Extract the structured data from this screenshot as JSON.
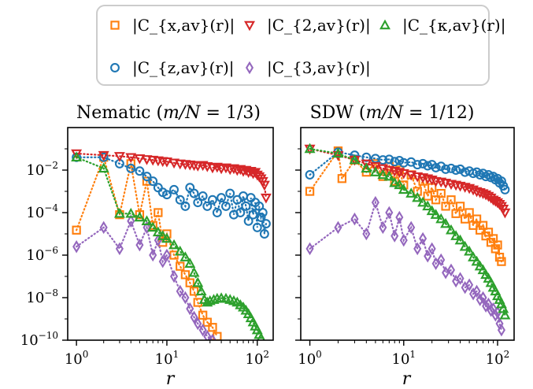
{
  "colors": {
    "C_x": "#ff7f0e",
    "C_z": "#1f77b4",
    "C_2": "#d62728",
    "C_3": "#9467bd",
    "C_kappa": "#2ca02c"
  },
  "legend": {
    "position": "top-center",
    "entries": [
      {
        "key": "C_x",
        "label": "|C_{x,av}(r)|",
        "marker": "square"
      },
      {
        "key": "C_2",
        "label": "|C_{2,av}(r)|",
        "marker": "triangle-down"
      },
      {
        "key": "C_kappa",
        "label": "|C_{κ,av}(r)|",
        "marker": "triangle-up"
      },
      {
        "key": "C_z",
        "label": "|C_{z,av}(r)|",
        "marker": "circle"
      },
      {
        "key": "C_3",
        "label": "|C_{3,av}(r)|",
        "marker": "diamond"
      }
    ]
  },
  "chart_data": [
    {
      "type": "scatter",
      "title": "Nematic (m/N = 1/3)",
      "title_plain": "Nematic (",
      "title_math": "m/N",
      "title_tail": " = 1/3)",
      "xlabel": "r",
      "ylabel": "",
      "xscale": "log",
      "yscale": "log",
      "xlim": [
        0.8,
        150
      ],
      "ylim": [
        1e-10,
        1
      ],
      "grid": false,
      "series": [
        {
          "key": "C_x",
          "name": "|C_{x,av}(r)|",
          "x": [
            1,
            2,
            3,
            4,
            5,
            6,
            7,
            8,
            9,
            10,
            12,
            14,
            16,
            18,
            20,
            22,
            25,
            28,
            32,
            36
          ],
          "y": [
            1.5e-05,
            0.04,
            8e-05,
            0.02,
            8e-05,
            0.003,
            2.5e-05,
            0.0001,
            4e-06,
            1e-05,
            1e-06,
            3e-07,
            1.2e-07,
            5e-08,
            2e-08,
            6e-09,
            1.5e-09,
            7e-10,
            4e-10,
            1.5e-10
          ]
        },
        {
          "key": "C_z",
          "name": "|C_{z,av}(r)|",
          "x": [
            1,
            2,
            3,
            4,
            5,
            6,
            7,
            8,
            9,
            10,
            12,
            14,
            16,
            18,
            20,
            22,
            25,
            28,
            32,
            36,
            40,
            45,
            50,
            55,
            60,
            65,
            70,
            75,
            80,
            85,
            90,
            95,
            100,
            105,
            110,
            115,
            120,
            125
          ],
          "y": [
            0.04,
            0.04,
            0.02,
            0.012,
            0.009,
            0.005,
            0.003,
            0.0015,
            0.0009,
            0.0007,
            0.0012,
            0.0004,
            0.0002,
            0.0015,
            0.0008,
            0.0003,
            0.0006,
            0.0002,
            0.0004,
            0.0001,
            0.0005,
            0.0002,
            0.0008,
            8e-05,
            0.0004,
            0.0001,
            0.0006,
            0.0002,
            4e-05,
            0.0005,
            8e-05,
            0.0003,
            2e-05,
            0.0002,
            6e-05,
            0.0001,
            1e-05,
            3e-05
          ]
        },
        {
          "key": "C_2",
          "name": "|C_{2,av}(r)|",
          "x": [
            1,
            2,
            3,
            4,
            5,
            6,
            7,
            8,
            9,
            10,
            12,
            14,
            16,
            18,
            20,
            22,
            25,
            28,
            32,
            36,
            40,
            45,
            50,
            55,
            60,
            65,
            70,
            75,
            80,
            85,
            90,
            95,
            100,
            105,
            110,
            115,
            120,
            125
          ],
          "y": [
            0.06,
            0.05,
            0.045,
            0.04,
            0.035,
            0.032,
            0.03,
            0.028,
            0.026,
            0.025,
            0.022,
            0.02,
            0.019,
            0.018,
            0.017,
            0.016,
            0.017,
            0.015,
            0.013,
            0.014,
            0.012,
            0.013,
            0.011,
            0.012,
            0.01,
            0.011,
            0.009,
            0.01,
            0.008,
            0.009,
            0.007,
            0.008,
            0.006,
            0.005,
            0.004,
            0.003,
            0.002,
            0.0005
          ]
        },
        {
          "key": "C_3",
          "name": "|C_{3,av}(r)|",
          "x": [
            1,
            2,
            3,
            4,
            5,
            6,
            7,
            8,
            9,
            10,
            12,
            14,
            16,
            18,
            20,
            22,
            25,
            28,
            32
          ],
          "y": [
            2.5e-06,
            2e-05,
            2e-06,
            4e-05,
            3e-06,
            2e-05,
            1e-06,
            5e-06,
            5e-07,
            1e-06,
            1e-07,
            2e-08,
            1e-08,
            3e-09,
            1.2e-09,
            6e-10,
            3e-10,
            1.5e-10,
            1e-10
          ]
        },
        {
          "key": "C_kappa",
          "name": "|C_{κ,av}(r)|",
          "x": [
            1,
            2,
            3,
            4,
            5,
            6,
            7,
            8,
            9,
            10,
            12,
            14,
            16,
            18,
            20,
            22,
            24,
            26,
            28,
            30,
            33,
            36,
            40,
            45,
            50,
            55,
            60,
            65,
            70,
            75,
            80,
            85,
            90,
            95,
            100,
            105,
            110
          ],
          "y": [
            0.04,
            0.012,
            9e-05,
            9e-05,
            6e-05,
            4e-05,
            2e-05,
            1.2e-05,
            8e-06,
            6e-06,
            3e-06,
            1.5e-06,
            8e-07,
            4e-07,
            1.5e-07,
            5e-08,
            2e-08,
            8e-09,
            6e-09,
            7e-09,
            8e-09,
            9e-09,
            9.5e-09,
            9e-09,
            8e-09,
            7e-09,
            6e-09,
            4.5e-09,
            3.5e-09,
            2.5e-09,
            1.7e-09,
            1.1e-09,
            7e-10,
            4.5e-10,
            3e-10,
            1.8e-10,
            1.2e-10
          ]
        }
      ]
    },
    {
      "type": "scatter",
      "title": "SDW (m/N = 1/12)",
      "title_plain": "SDW (",
      "title_math": "m/N",
      "title_tail": " = 1/12)",
      "xlabel": "r",
      "ylabel": "",
      "xscale": "log",
      "yscale": "log",
      "xlim": [
        0.8,
        150
      ],
      "ylim": [
        1e-10,
        1
      ],
      "grid": false,
      "series": [
        {
          "key": "C_x",
          "name": "|C_{x,av}(r)|",
          "x": [
            1,
            2,
            2.2,
            3,
            4,
            5,
            6,
            7,
            8,
            9,
            10,
            12,
            14,
            16,
            18,
            20,
            22,
            25,
            28,
            32,
            36,
            40,
            45,
            50,
            55,
            60,
            65,
            70,
            75,
            80,
            85,
            90,
            95,
            100,
            105,
            110
          ],
          "y": [
            0.001,
            0.08,
            0.004,
            0.03,
            0.008,
            0.02,
            0.005,
            0.015,
            0.003,
            0.01,
            0.002,
            0.006,
            0.001,
            0.003,
            0.0006,
            0.0015,
            0.0004,
            0.0008,
            0.0002,
            0.0004,
            9e-05,
            0.0002,
            5e-05,
            0.0001,
            2.5e-05,
            5e-05,
            1.5e-05,
            2.5e-05,
            8e-06,
            1.2e-05,
            4e-06,
            6e-06,
            2e-06,
            3e-06,
            8e-07,
            5e-07
          ]
        },
        {
          "key": "C_z",
          "name": "|C_{z,av}(r)|",
          "x": [
            1,
            2,
            3,
            4,
            5,
            6,
            7,
            8,
            9,
            10,
            12,
            14,
            16,
            18,
            20,
            22,
            25,
            28,
            32,
            36,
            40,
            45,
            50,
            55,
            60,
            65,
            70,
            75,
            80,
            85,
            90,
            95,
            100,
            105,
            110,
            115,
            120
          ],
          "y": [
            0.006,
            0.07,
            0.05,
            0.04,
            0.035,
            0.03,
            0.032,
            0.025,
            0.028,
            0.022,
            0.024,
            0.018,
            0.02,
            0.016,
            0.018,
            0.013,
            0.015,
            0.011,
            0.012,
            0.01,
            0.011,
            0.008,
            0.009,
            0.007,
            0.008,
            0.006,
            0.007,
            0.005,
            0.006,
            0.0045,
            0.005,
            0.0035,
            0.004,
            0.0025,
            0.003,
            0.0018,
            0.0012
          ]
        },
        {
          "key": "C_2",
          "name": "|C_{2,av}(r)|",
          "x": [
            1,
            2,
            3,
            4,
            5,
            6,
            7,
            8,
            9,
            10,
            12,
            14,
            16,
            18,
            20,
            22,
            25,
            28,
            32,
            36,
            40,
            45,
            50,
            55,
            60,
            65,
            70,
            75,
            80,
            85,
            90,
            95,
            100,
            105,
            110,
            115,
            120
          ],
          "y": [
            0.1,
            0.05,
            0.03,
            0.02,
            0.015,
            0.012,
            0.01,
            0.009,
            0.008,
            0.007,
            0.006,
            0.005,
            0.0045,
            0.004,
            0.0035,
            0.003,
            0.0028,
            0.0025,
            0.0022,
            0.002,
            0.0018,
            0.0016,
            0.0014,
            0.0012,
            0.001,
            0.0009,
            0.0008,
            0.0007,
            0.0006,
            0.0005,
            0.0004,
            0.00035,
            0.0003,
            0.00025,
            0.0002,
            0.00015,
            0.0001
          ]
        },
        {
          "key": "C_3",
          "name": "|C_{3,av}(r)|",
          "x": [
            1,
            2,
            3,
            4,
            5,
            6,
            7,
            8,
            9,
            10,
            12,
            14,
            16,
            18,
            20,
            22,
            25,
            28,
            32,
            36,
            40,
            45,
            50,
            55,
            60,
            65,
            70,
            75,
            80,
            85,
            90,
            95,
            100,
            105,
            110
          ],
          "y": [
            2e-06,
            2e-05,
            5e-05,
            1e-05,
            0.0003,
            2e-05,
            0.0001,
            8e-06,
            6e-05,
            5e-06,
            2e-05,
            2e-06,
            6e-06,
            9e-07,
            2e-06,
            4e-07,
            6e-07,
            1.5e-07,
            2e-07,
            6e-08,
            8e-08,
            3e-08,
            4e-08,
            1.5e-08,
            2e-08,
            8e-09,
            1e-08,
            4e-09,
            5e-09,
            2.5e-09,
            3e-09,
            1.5e-09,
            2e-09,
            6e-10,
            3e-10
          ]
        },
        {
          "key": "C_kappa",
          "name": "|C_{κ,av}(r)|",
          "x": [
            1,
            2,
            3,
            4,
            5,
            6,
            7,
            8,
            9,
            10,
            12,
            14,
            16,
            18,
            20,
            22,
            25,
            28,
            32,
            36,
            40,
            45,
            50,
            55,
            60,
            65,
            70,
            75,
            80,
            85,
            90,
            95,
            100,
            105,
            110,
            115,
            120
          ],
          "y": [
            0.1,
            0.06,
            0.03,
            0.012,
            0.008,
            0.006,
            0.005,
            0.0025,
            0.002,
            0.0012,
            0.0008,
            0.0005,
            0.0003,
            0.0002,
            0.00012,
            8e-05,
            5e-05,
            3e-05,
            1.5e-05,
            8e-06,
            5e-06,
            2.5e-06,
            1.5e-06,
            8e-07,
            5e-07,
            3e-07,
            2e-07,
            1.2e-07,
            8e-08,
            5e-08,
            3e-08,
            2e-08,
            1.2e-08,
            8e-09,
            5e-09,
            3e-09,
            1.5e-09
          ]
        }
      ]
    }
  ]
}
